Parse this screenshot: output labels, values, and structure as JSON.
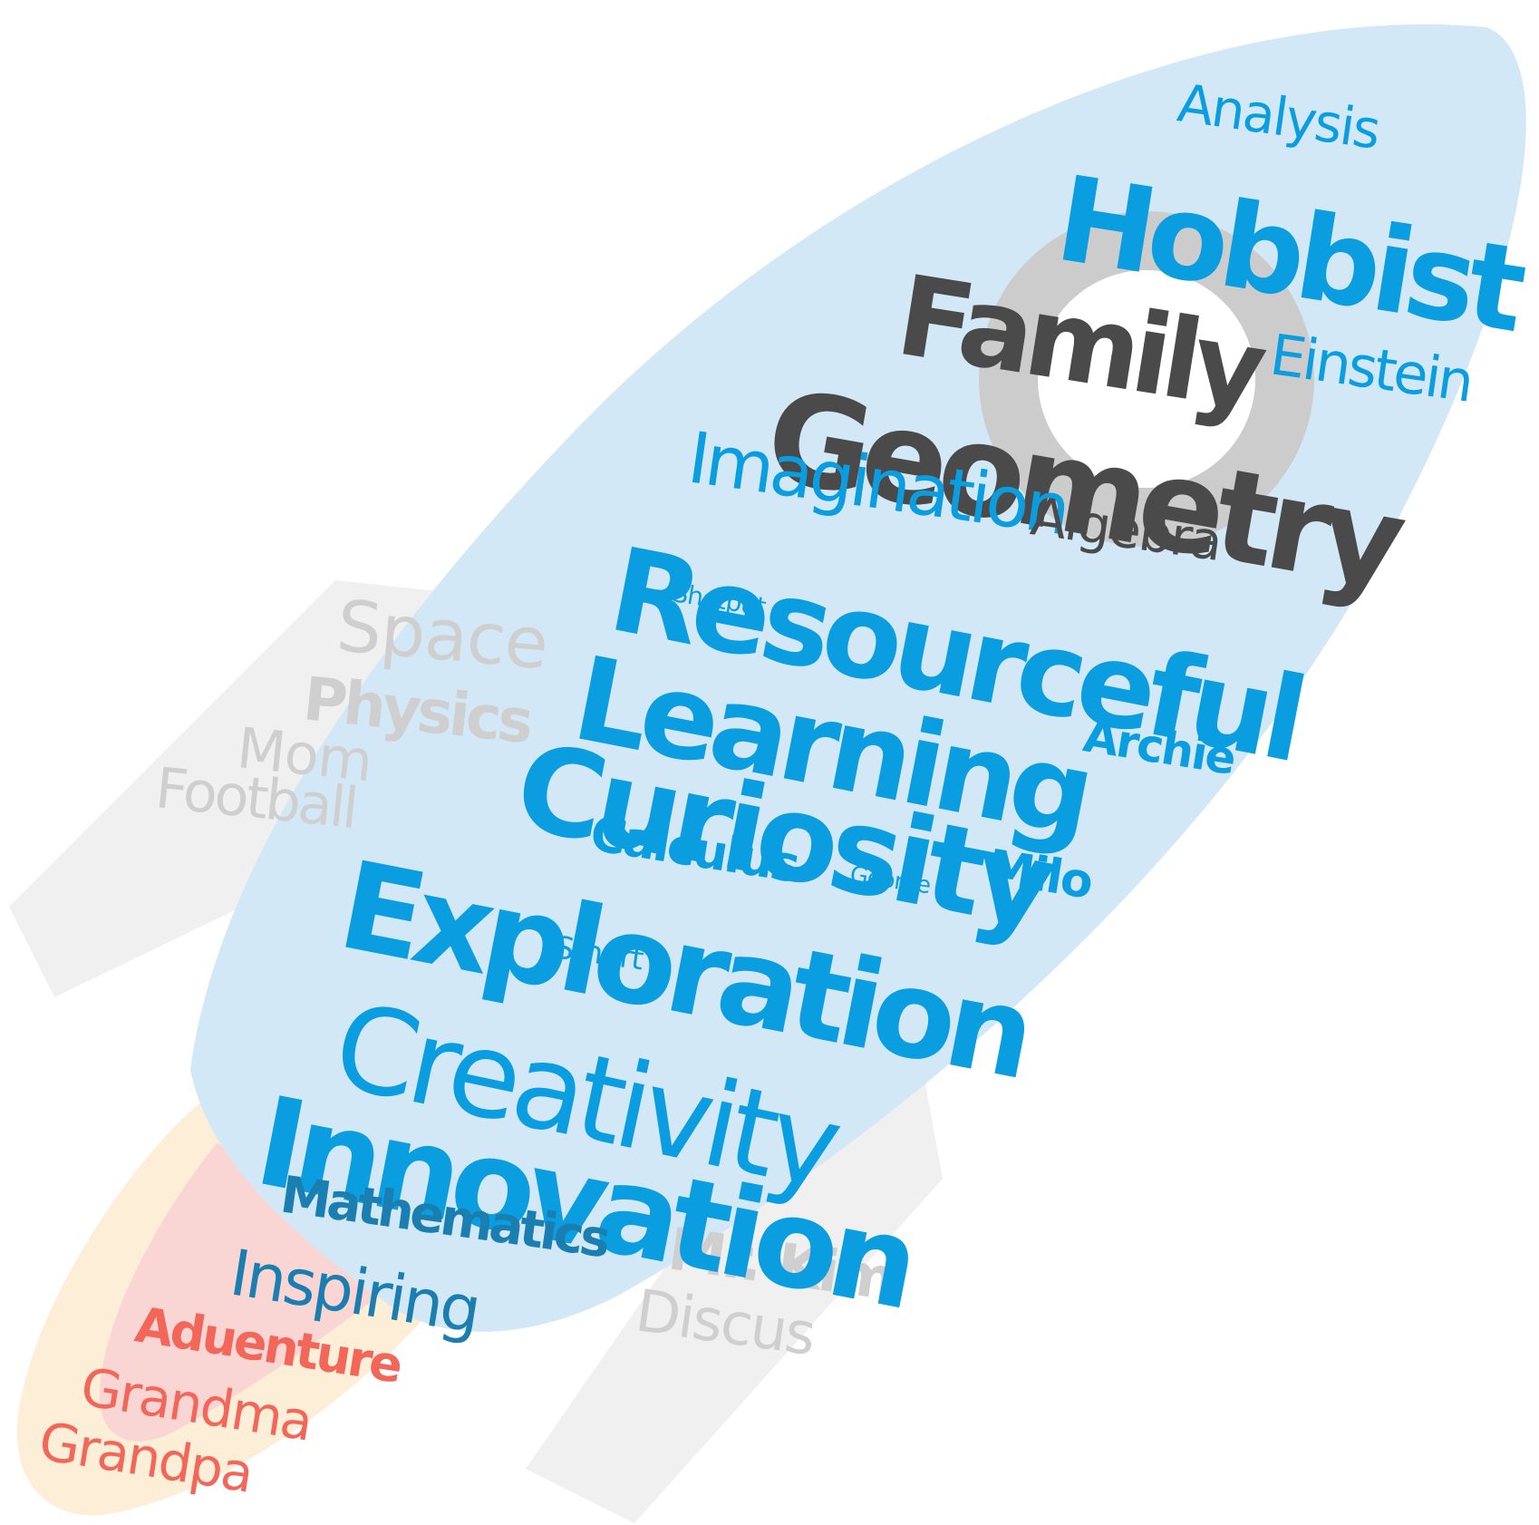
{
  "colors": {
    "blue": "#0a9ee0",
    "dark_blue": "#1a7fb0",
    "dark_gray": "#4a4a4a",
    "light_gray": "#cfcfcf",
    "red": "#f2675a",
    "body_fill": "#d3e8f7",
    "wing_fill": "#f0f0f0",
    "window_fill": "#cccccc",
    "flame_outer": "#fdeed7",
    "flame_inner": "#f9d6d4"
  },
  "words": {
    "analysis": "Analysis",
    "hobbist": "Hobbist",
    "family": "Family",
    "einstein": "Einstein",
    "geometry": "Geometry",
    "imagination": "Imagination",
    "algebra": "Algebra",
    "resourceful": "Resourceful",
    "shotput": "Shotput",
    "learning": "Learning",
    "archie": "Archie",
    "curiosity": "Curiosity",
    "calculus": "Calculus",
    "milo": "Milo",
    "george": "George",
    "exploration": "Exploration",
    "smart": "Smart",
    "creativity": "Creativity",
    "innovation": "Innovation",
    "mathematics": "Mathematics",
    "inspiring": "Inspiring",
    "adventure": "Aduenture",
    "grandma": "Grandma",
    "grandpa": "Grandpa",
    "space": "Space",
    "physics": "Physics",
    "mom": "Mom",
    "football": "Football",
    "mr_kim": "Mr. Kim",
    "discus": "Discus"
  }
}
